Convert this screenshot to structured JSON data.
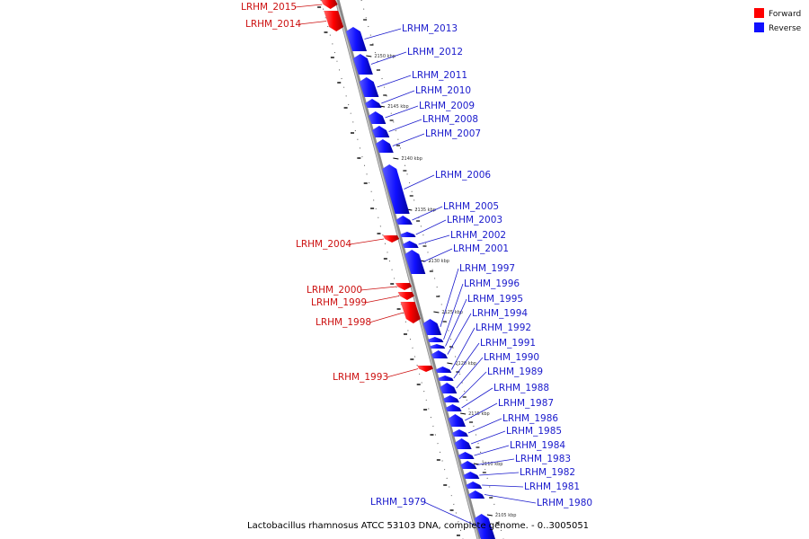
{
  "colors": {
    "forward": "#ff0000",
    "reverse": "#1010ff",
    "forward_label": "#cc1111",
    "reverse_label": "#1a1acc",
    "backbone": "#8a8a8a"
  },
  "legend": {
    "forward": "Forward",
    "reverse": "Reverse"
  },
  "caption": "Lactobacillus rhamnosus ATCC 53103 DNA, complete genome. - 0..3005051",
  "ticks": [
    "2150 kbp",
    "2145 kbp",
    "2140 kbp",
    "2135 kbp",
    "2130 kbp",
    "2125 kbp",
    "2120 kbp",
    "2115 kbp",
    "2110 kbp",
    "2105 kbp"
  ],
  "reverse_genes": [
    "LRHM_2013",
    "LRHM_2012",
    "LRHM_2011",
    "LRHM_2010",
    "LRHM_2009",
    "LRHM_2008",
    "LRHM_2007",
    "LRHM_2006",
    "LRHM_2005",
    "LRHM_2003",
    "LRHM_2002",
    "LRHM_2001",
    "LRHM_1997",
    "LRHM_1996",
    "LRHM_1995",
    "LRHM_1994",
    "LRHM_1992",
    "LRHM_1991",
    "LRHM_1990",
    "LRHM_1989",
    "LRHM_1988",
    "LRHM_1987",
    "LRHM_1986",
    "LRHM_1985",
    "LRHM_1984",
    "LRHM_1983",
    "LRHM_1982",
    "LRHM_1981",
    "LRHM_1980",
    "LRHM_1979"
  ],
  "forward_genes": [
    "LRHM_2015",
    "LRHM_2014",
    "LRHM_2004",
    "LRHM_2000",
    "LRHM_1999",
    "LRHM_1998",
    "LRHM_1993"
  ]
}
